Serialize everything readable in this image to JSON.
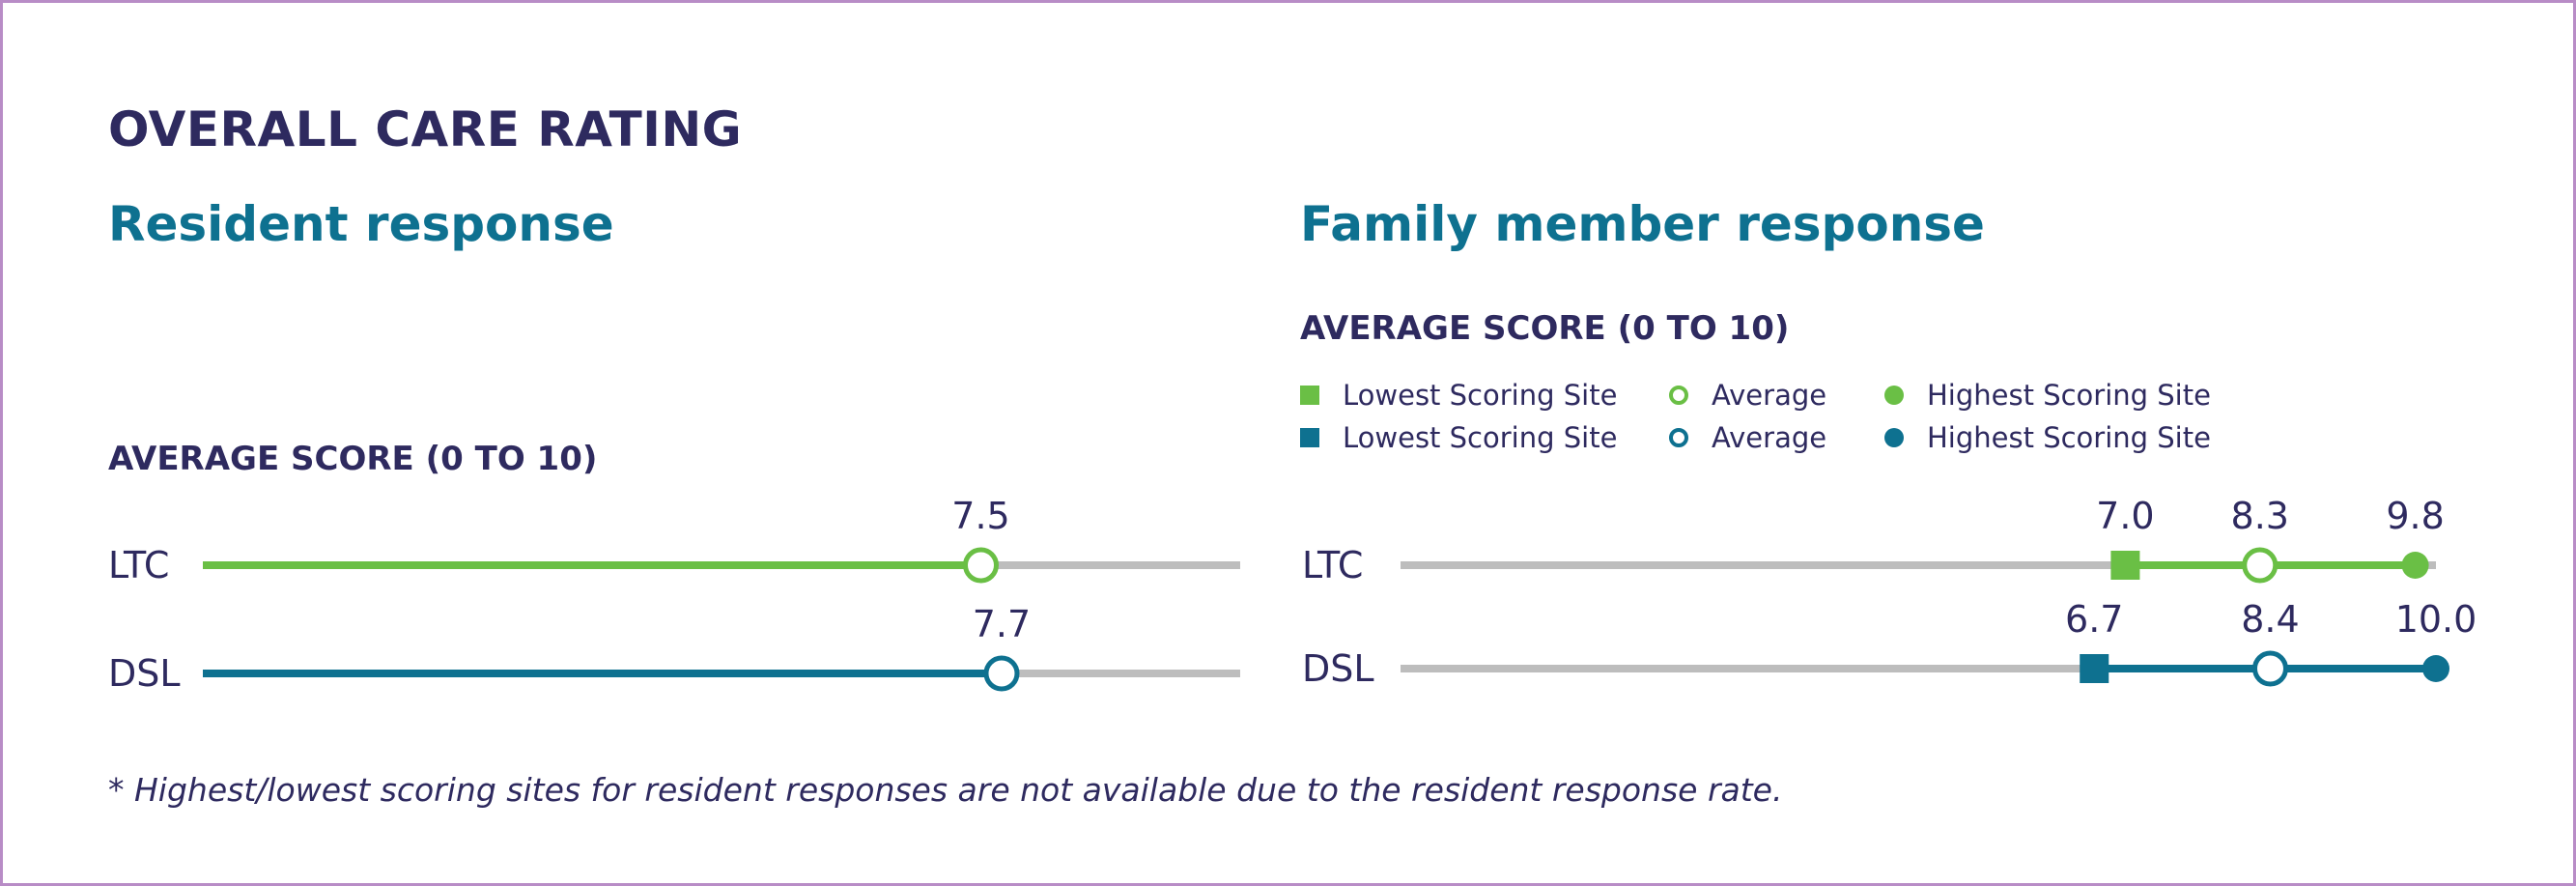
{
  "title": "OVERALL CARE RATING",
  "colors": {
    "navy": "#2e2a5f",
    "teal": "#0e7190",
    "green": "#6abf45",
    "gray": "#bdbdbd",
    "border": "#b88cc6"
  },
  "panels": {
    "resident": {
      "title": "Resident response",
      "axis_label": "AVERAGE SCORE (0 TO 10)"
    },
    "family": {
      "title": "Family member response",
      "axis_label": "AVERAGE SCORE (0 TO 10)",
      "legend": [
        {
          "label": "Lowest Scoring Site",
          "marker": "square",
          "color": "#6abf45"
        },
        {
          "label": "Average",
          "marker": "ring",
          "color": "#6abf45"
        },
        {
          "label": "Highest Scoring Site",
          "marker": "dot",
          "color": "#6abf45"
        },
        {
          "label": "Lowest Scoring Site",
          "marker": "square",
          "color": "#0e7190"
        },
        {
          "label": "Average",
          "marker": "ring",
          "color": "#0e7190"
        },
        {
          "label": "Highest Scoring Site",
          "marker": "dot",
          "color": "#0e7190"
        }
      ]
    }
  },
  "chart_data": [
    {
      "type": "dot-range",
      "title": "Resident response",
      "ylabel": "AVERAGE SCORE (0 TO 10)",
      "xlim": [
        0,
        10
      ],
      "rows": [
        {
          "category": "LTC",
          "color": "#6abf45",
          "average": 7.5,
          "average_label": "7.5"
        },
        {
          "category": "DSL",
          "color": "#0e7190",
          "average": 7.7,
          "average_label": "7.7"
        }
      ]
    },
    {
      "type": "dot-range",
      "title": "Family member response",
      "ylabel": "AVERAGE SCORE (0 TO 10)",
      "xlim": [
        0,
        10
      ],
      "rows": [
        {
          "category": "LTC",
          "color": "#6abf45",
          "lowest": 7.0,
          "lowest_label": "7.0",
          "average": 8.3,
          "average_label": "8.3",
          "highest": 9.8,
          "highest_label": "9.8"
        },
        {
          "category": "DSL",
          "color": "#0e7190",
          "lowest": 6.7,
          "lowest_label": "6.7",
          "average": 8.4,
          "average_label": "8.4",
          "highest": 10.0,
          "highest_label": "10.0"
        }
      ]
    }
  ],
  "footnote": "* Highest/lowest scoring sites for resident responses are not available due to the resident response rate."
}
